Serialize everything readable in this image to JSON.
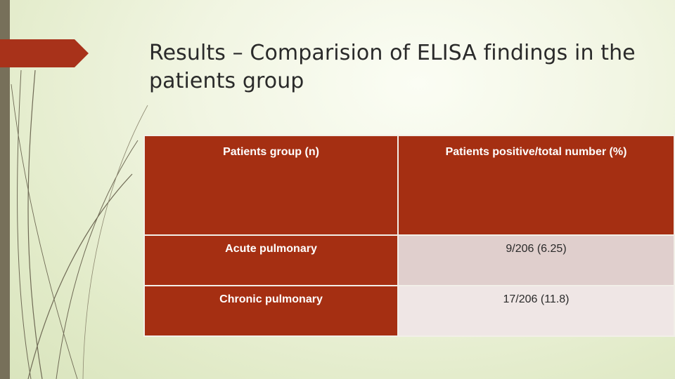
{
  "slide": {
    "title": "Results – Comparision of ELISA findings in the patients group"
  },
  "colors": {
    "accent": "#a8321a",
    "left_bar": "#77705a",
    "header_bg": "#a52f12",
    "row1_value_bg": "#e0cfcd",
    "row2_value_bg": "#efe6e5"
  },
  "table": {
    "headers": [
      "Patients group (n)",
      "Patients positive/total number (%)"
    ],
    "rows": [
      {
        "group": "Acute pulmonary",
        "value": "9/206 (6.25)"
      },
      {
        "group": "Chronic pulmonary",
        "value": "17/206 (11.8)"
      }
    ]
  }
}
